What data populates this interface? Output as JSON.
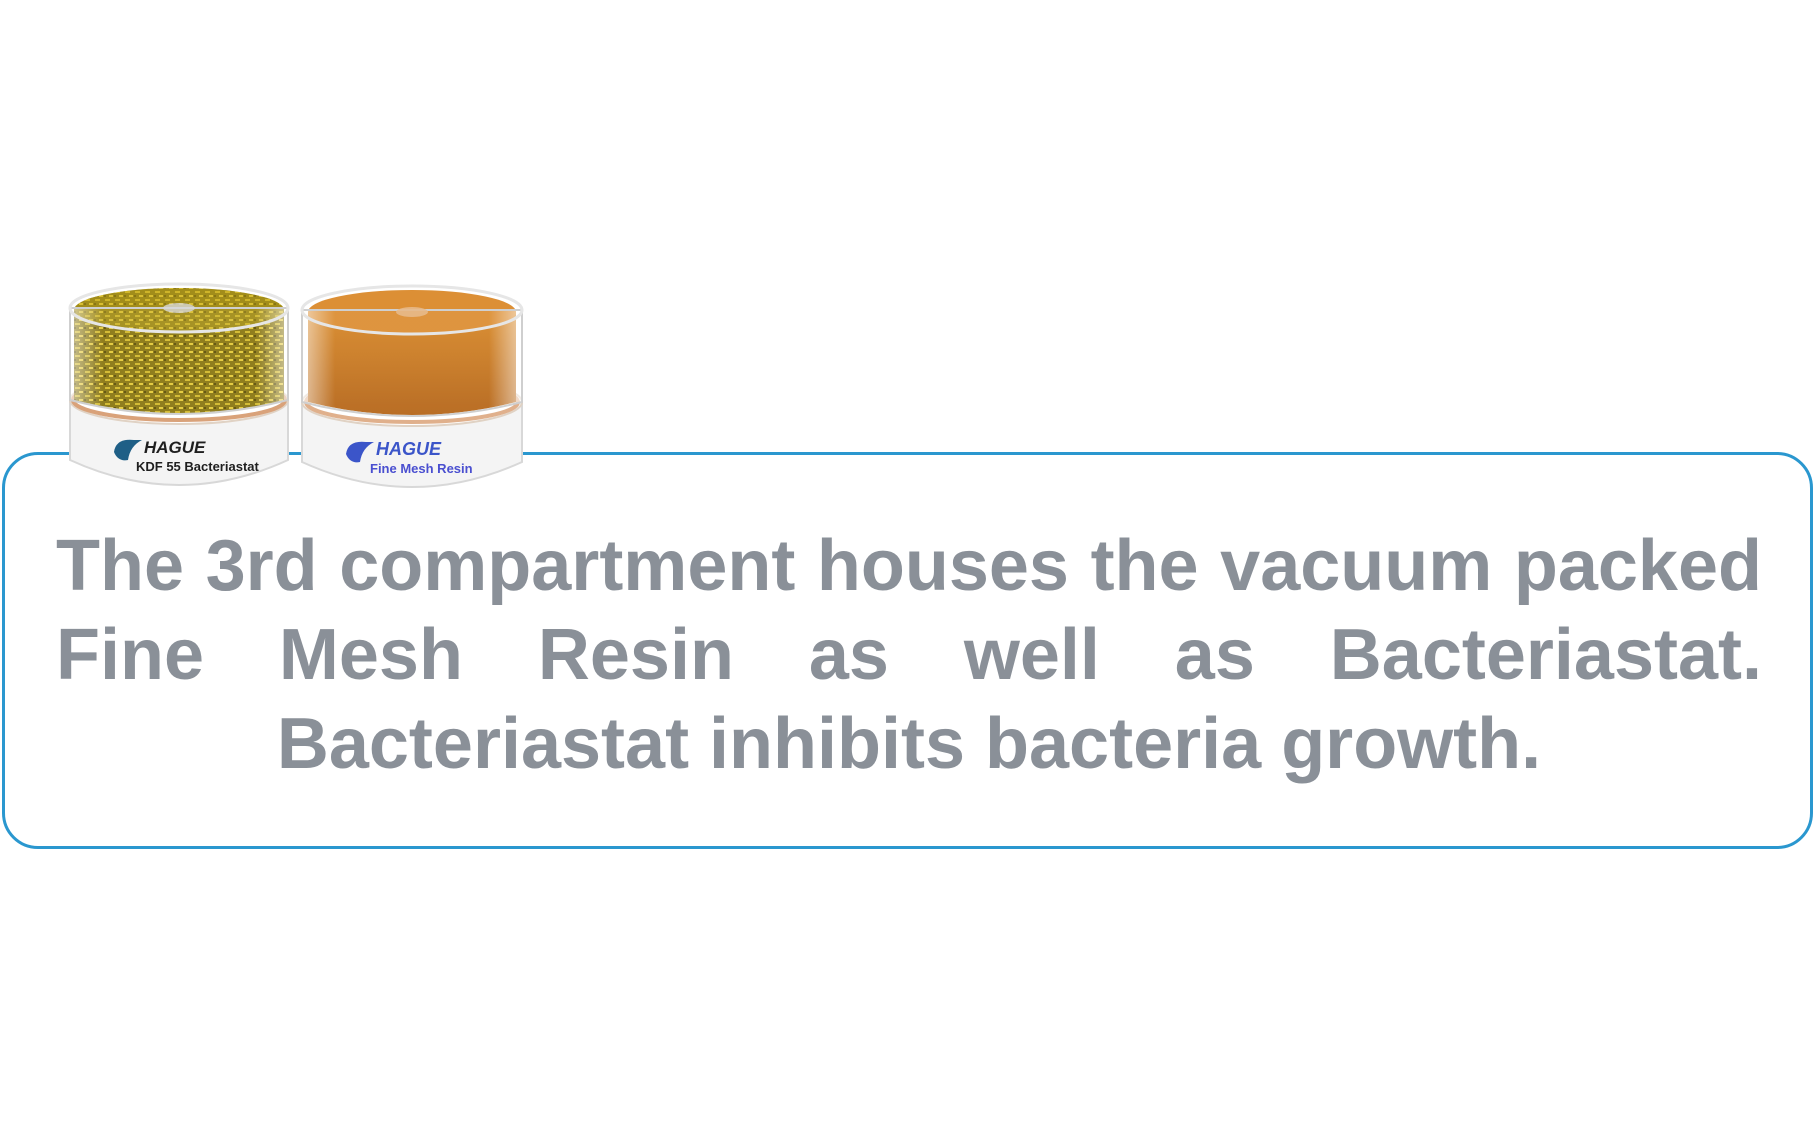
{
  "caption": {
    "text": "The 3rd compartment houses the vacuum packed Fine Mesh Resin as well as Bacteriastat. Bacteriastat inhibits bacteria growth."
  },
  "products": [
    {
      "brand": "HAGUE",
      "label": "KDF 55 Bacteriastat",
      "media_color": "#b39a1a",
      "label_color": "#1f1f1f",
      "logo_color": "#1f5f86"
    },
    {
      "brand": "HAGUE",
      "label": "Fine Mesh Resin",
      "media_color": "#c9781c",
      "label_color": "#4a4fd0",
      "logo_color": "#3b55c9"
    }
  ],
  "colors": {
    "box_border": "#2a97cf",
    "caption_text": "#8a9098"
  }
}
